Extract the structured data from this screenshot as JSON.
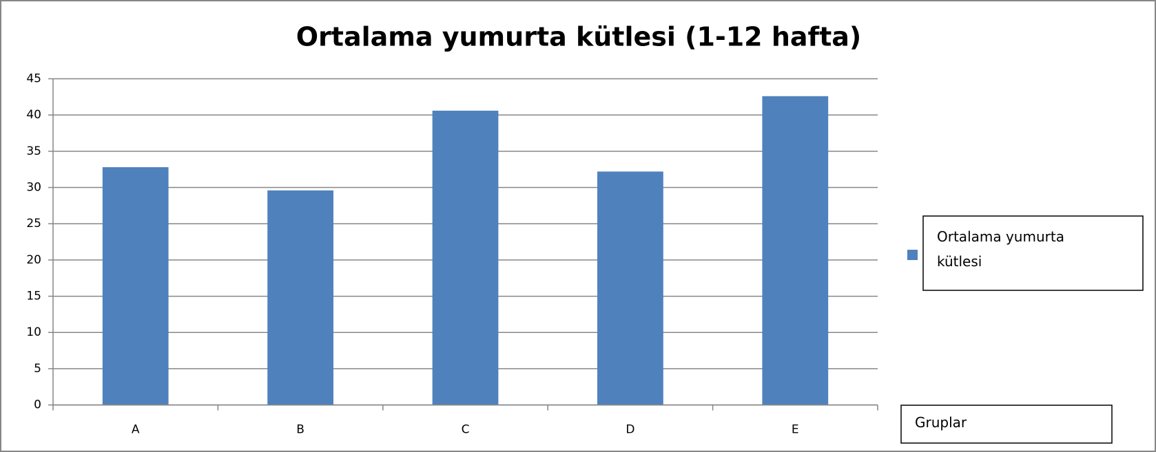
{
  "chart_data": {
    "type": "bar",
    "title": "Ortalama yumurta kütlesi (1-12 hafta)",
    "x_label": "Gruplar",
    "categories": [
      "A",
      "B",
      "C",
      "D",
      "E"
    ],
    "series": [
      {
        "name": "Ortalama yumurta kütlesi",
        "color": "#4f81bd",
        "values": [
          32.8,
          29.6,
          40.6,
          32.2,
          42.6
        ]
      }
    ],
    "ylim": [
      0,
      45
    ],
    "yticks": [
      0,
      5,
      10,
      15,
      20,
      25,
      30,
      35,
      40,
      45
    ],
    "grid": true,
    "legend": "right"
  }
}
